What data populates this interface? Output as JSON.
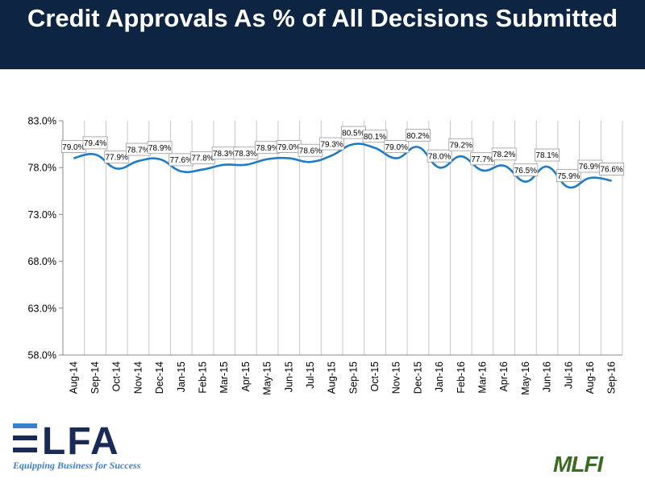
{
  "header": {
    "title": "Credit Approvals As % of All Decisions Submitted",
    "bg_color": "#0d2543"
  },
  "chart_data": {
    "type": "line",
    "title": "Credit Approvals As % of All Decisions Submitted",
    "xlabel": "",
    "ylabel": "",
    "ylim": [
      58,
      83
    ],
    "yticks": [
      "83.0%",
      "78.0%",
      "73.0%",
      "68.0%",
      "63.0%",
      "58.0%"
    ],
    "ytick_values": [
      83,
      78,
      73,
      68,
      63,
      58
    ],
    "categories": [
      "Aug-14",
      "Sep-14",
      "Oct-14",
      "Nov-14",
      "Dec-14",
      "Jan-15",
      "Feb-15",
      "Mar-15",
      "Apr-15",
      "May-15",
      "Jun-15",
      "Jul-15",
      "Aug-15",
      "Sep-15",
      "Oct-15",
      "Nov-15",
      "Dec-15",
      "Jan-16",
      "Feb-16",
      "Mar-16",
      "Apr-16",
      "May-16",
      "Jun-16",
      "Jul-16",
      "Aug-16",
      "Sep-16"
    ],
    "values": [
      79.0,
      79.4,
      77.9,
      78.7,
      78.9,
      77.6,
      77.8,
      78.3,
      78.3,
      78.9,
      79.0,
      78.6,
      79.3,
      80.5,
      80.1,
      79.0,
      80.2,
      78.0,
      79.2,
      77.7,
      78.2,
      76.5,
      78.1,
      75.9,
      76.9,
      76.6
    ],
    "labels": [
      "79.0%",
      "79.4%",
      "77.9%",
      "78.7%",
      "78.9%",
      "77.6%",
      "77.8%",
      "78.3%",
      "78.3%",
      "78.9%",
      "79.0%",
      "78.6%",
      "79.3%",
      "80.5%",
      "80.1%",
      "79.0%",
      "80.2%",
      "78.0%",
      "79.2%",
      "77.7%",
      "78.2%",
      "76.5%",
      "78.1%",
      "75.9%",
      "76.9%",
      "76.6%"
    ],
    "grid": true,
    "line_color": "#1f7bc4"
  },
  "logos": {
    "elfa_mark": "ELFA",
    "elfa_tagline": "Equipping Business for Success",
    "mlfi_mark": "MLFI"
  }
}
